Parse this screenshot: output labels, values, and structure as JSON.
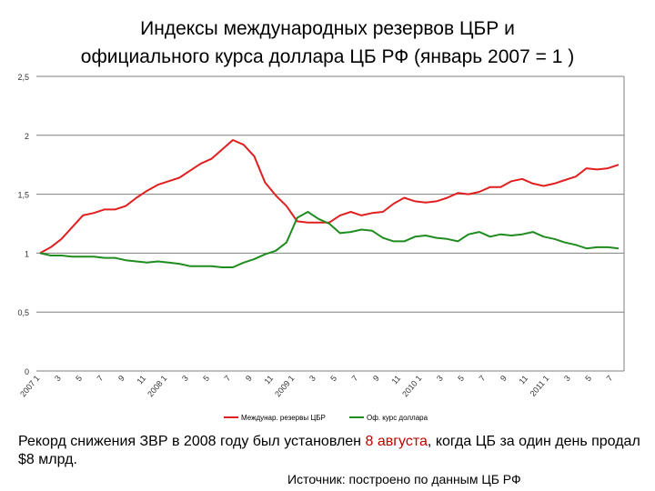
{
  "slide": {
    "title_line1": "Индексы международных резервов ЦБР и",
    "title_line2": "официального курса доллара ЦБ РФ (январь 2007 = 1 )",
    "note_before": "Рекорд снижения ЗВР в 2008 году был установлен ",
    "note_highlight": "8 августа",
    "note_after": ", когда ЦБ за один день продал $8 млрд.",
    "source": "Источник: построено по данным ЦБ РФ"
  },
  "colors": {
    "reserves": "#e02020",
    "dollar": "#1f8c1f",
    "highlight": "#c00000"
  },
  "chart_data": {
    "type": "line",
    "title": "Индексы международных резервов ЦБР и официального курса доллара ЦБ РФ (январь 2007 = 1 )",
    "xlabel": "",
    "ylabel": "",
    "ylim": [
      0,
      2.5
    ],
    "yticks": [
      0,
      0.5,
      1,
      1.5,
      2,
      2.5
    ],
    "ytick_labels": [
      "0",
      "0,5",
      "1",
      "1,5",
      "2",
      "2,5"
    ],
    "grid": "horizontal",
    "legend": "bottom",
    "x_tick_labels": [
      "2007 1",
      "3",
      "5",
      "7",
      "9",
      "11",
      "2008 1",
      "3",
      "5",
      "7",
      "9",
      "11",
      "2009 1",
      "3",
      "5",
      "7",
      "9",
      "11",
      "2010 1",
      "3",
      "5",
      "7",
      "9",
      "11",
      "2011 1",
      "3",
      "5",
      "7"
    ],
    "series": [
      {
        "name": "Междунар. резервы ЦБР",
        "values": [
          1.0,
          1.05,
          1.12,
          1.22,
          1.32,
          1.34,
          1.37,
          1.37,
          1.4,
          1.47,
          1.53,
          1.58,
          1.61,
          1.64,
          1.7,
          1.76,
          1.8,
          1.88,
          1.96,
          1.92,
          1.82,
          1.6,
          1.49,
          1.4,
          1.27,
          1.26,
          1.26,
          1.26,
          1.32,
          1.35,
          1.32,
          1.34,
          1.35,
          1.42,
          1.47,
          1.44,
          1.43,
          1.44,
          1.47,
          1.51,
          1.5,
          1.52,
          1.56,
          1.56,
          1.61,
          1.63,
          1.59,
          1.57,
          1.59,
          1.62,
          1.65,
          1.72,
          1.71,
          1.72,
          1.75
        ]
      },
      {
        "name": "Оф. курс доллара",
        "values": [
          1.0,
          0.98,
          0.98,
          0.97,
          0.97,
          0.97,
          0.96,
          0.96,
          0.94,
          0.93,
          0.92,
          0.93,
          0.92,
          0.91,
          0.89,
          0.89,
          0.89,
          0.88,
          0.88,
          0.92,
          0.95,
          0.99,
          1.02,
          1.09,
          1.3,
          1.35,
          1.29,
          1.25,
          1.17,
          1.18,
          1.2,
          1.19,
          1.13,
          1.1,
          1.1,
          1.14,
          1.15,
          1.13,
          1.12,
          1.1,
          1.16,
          1.18,
          1.14,
          1.16,
          1.15,
          1.16,
          1.18,
          1.14,
          1.12,
          1.09,
          1.07,
          1.04,
          1.05,
          1.05,
          1.04
        ]
      }
    ]
  }
}
